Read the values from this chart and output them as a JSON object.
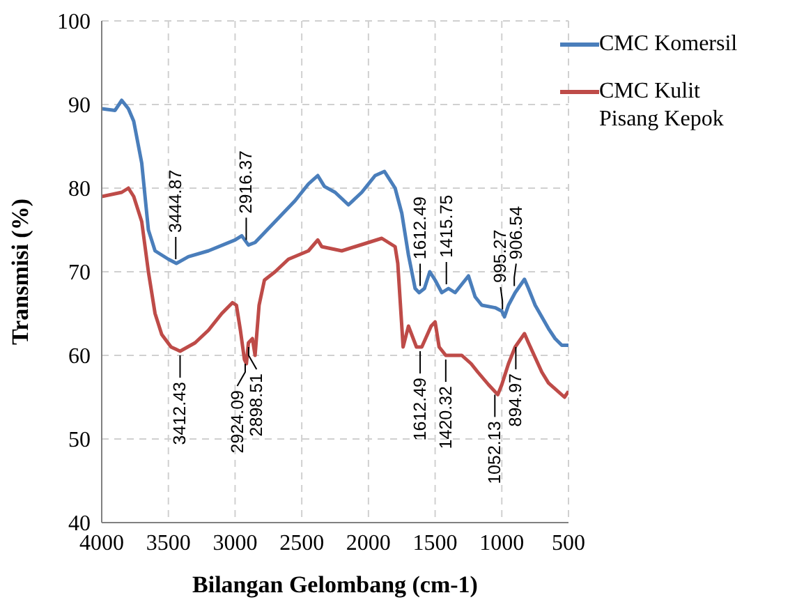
{
  "chart_data": {
    "type": "line",
    "xlabel": "Bilangan Gelombang (cm-1)",
    "ylabel": "Transmisi (%)",
    "xlim": [
      4000,
      500
    ],
    "xticks": [
      4000,
      3500,
      3000,
      2500,
      2000,
      1500,
      1000,
      500
    ],
    "ylim": [
      40,
      100
    ],
    "yticks": [
      40,
      50,
      60,
      70,
      80,
      90,
      100
    ],
    "grid": true,
    "legend": "top right",
    "marker": "none",
    "line_style": "solid",
    "series": [
      {
        "name": "CMC Komersil",
        "color": "#4a7ebb",
        "x": [
          4000,
          3900,
          3850,
          3800,
          3760,
          3700,
          3650,
          3600,
          3500,
          3440,
          3350,
          3200,
          3000,
          2950,
          2900,
          2850,
          2700,
          2550,
          2450,
          2380,
          2330,
          2250,
          2150,
          2050,
          1950,
          1880,
          1800,
          1750,
          1700,
          1650,
          1620,
          1580,
          1540,
          1500,
          1450,
          1400,
          1350,
          1300,
          1250,
          1200,
          1150,
          1050,
          1000,
          980,
          950,
          900,
          830,
          800,
          750,
          650,
          600,
          550,
          500
        ],
        "values": [
          89.5,
          89.3,
          90.5,
          89.5,
          88,
          83,
          75,
          72.5,
          71.5,
          71,
          71.8,
          72.5,
          73.8,
          74.3,
          73.2,
          73.5,
          76,
          78.5,
          80.5,
          81.5,
          80.2,
          79.5,
          78,
          79.5,
          81.5,
          82,
          80,
          77,
          72,
          68,
          67.5,
          68,
          70,
          69,
          67.5,
          68,
          67.5,
          68.5,
          69.5,
          67,
          66,
          65.7,
          65.3,
          64.6,
          66,
          67.5,
          69.1,
          68,
          66,
          63.2,
          62,
          61.2,
          61.2
        ]
      },
      {
        "name": "CMC Kulit Pisang Kepok",
        "color": "#be4b48",
        "x": [
          4000,
          3850,
          3800,
          3760,
          3700,
          3650,
          3600,
          3550,
          3480,
          3412,
          3300,
          3200,
          3100,
          3020,
          2990,
          2960,
          2930,
          2915,
          2900,
          2870,
          2850,
          2820,
          2780,
          2700,
          2600,
          2450,
          2380,
          2350,
          2200,
          2100,
          1900,
          1800,
          1780,
          1760,
          1740,
          1700,
          1640,
          1600,
          1530,
          1500,
          1470,
          1420,
          1350,
          1300,
          1230,
          1180,
          1100,
          1030,
          1000,
          950,
          900,
          830,
          800,
          700,
          650,
          530,
          500
        ],
        "values": [
          79,
          79.5,
          80,
          79,
          76,
          70,
          65,
          62.5,
          61,
          60.5,
          61.5,
          63,
          65,
          66.3,
          66,
          63,
          59.5,
          59,
          61.5,
          62,
          60,
          66,
          69,
          70,
          71.5,
          72.5,
          73.8,
          73,
          72.5,
          73,
          74,
          73,
          71,
          66,
          61,
          63.5,
          61,
          61,
          63.5,
          64,
          61,
          60,
          60,
          60,
          59,
          58,
          56.5,
          55.3,
          56.5,
          59,
          61,
          62.6,
          61.5,
          58,
          56.7,
          55,
          55.7
        ]
      }
    ],
    "annotations": [
      {
        "text": "3444.87",
        "x": 3444.87,
        "y": 71
      },
      {
        "text": "2916.37",
        "x": 2916.37,
        "y": 73.3
      },
      {
        "text": "1612.49",
        "x": 1612.49,
        "y": 67.8
      },
      {
        "text": "1415.75",
        "x": 1415.75,
        "y": 68
      },
      {
        "text": "995.27",
        "x": 995.27,
        "y": 65
      },
      {
        "text": "906.54",
        "x": 906.54,
        "y": 67.8
      },
      {
        "text": "3412.43",
        "x": 3412.43,
        "y": 60.5
      },
      {
        "text": "2924.09",
        "x": 2924.09,
        "y": 59.5
      },
      {
        "text": "2898.51",
        "x": 2898.51,
        "y": 61.5
      },
      {
        "text": "1612.49",
        "x": 1612.49,
        "y": 61
      },
      {
        "text": "1420.32",
        "x": 1420.32,
        "y": 60
      },
      {
        "text": "1052.13",
        "x": 1052.13,
        "y": 55.8
      },
      {
        "text": "894.97",
        "x": 894.97,
        "y": 61.5
      }
    ]
  }
}
